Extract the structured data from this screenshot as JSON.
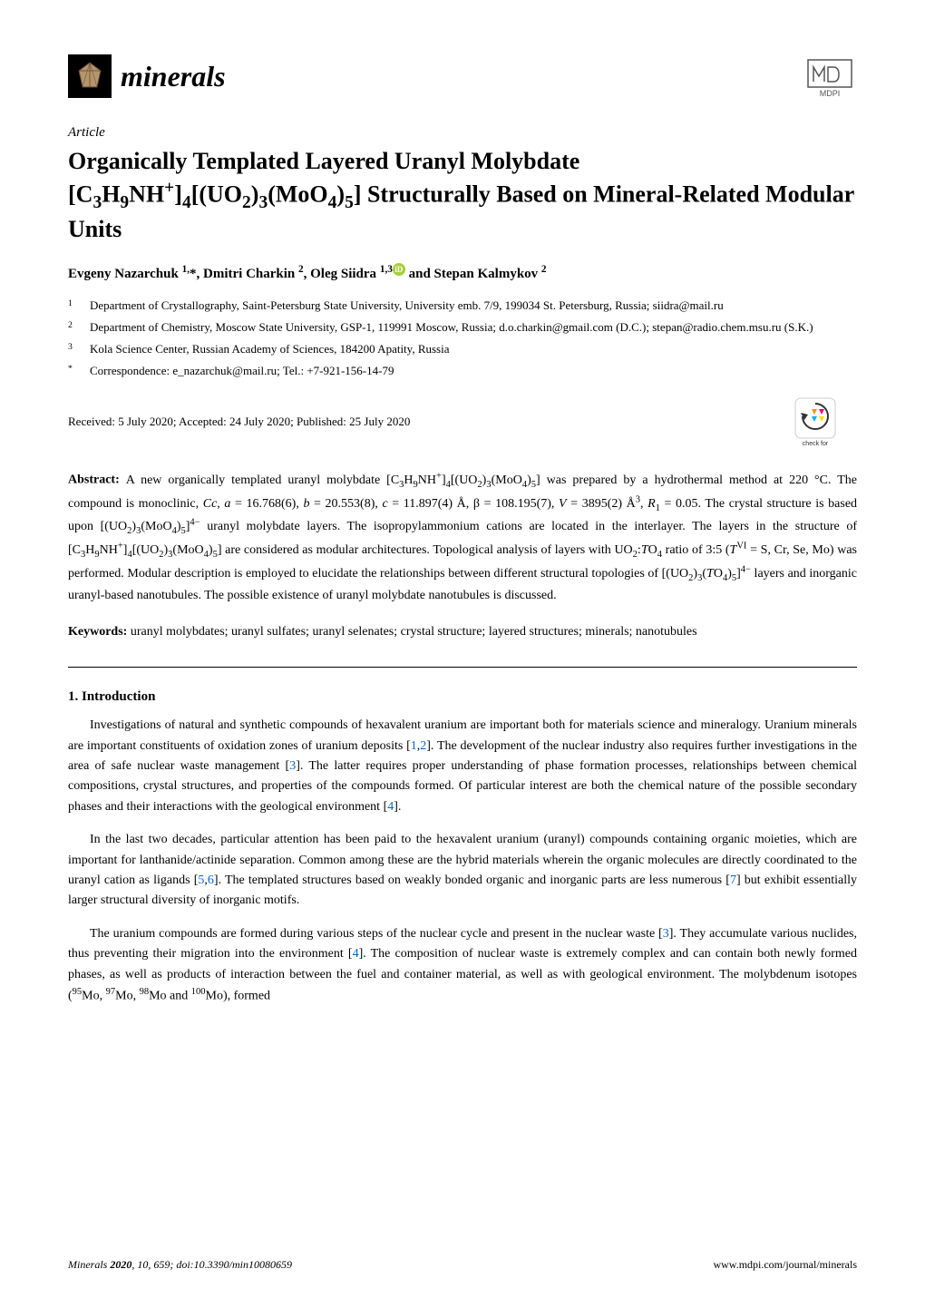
{
  "journal": {
    "name": "minerals",
    "publisher": "MDPI",
    "logo_bg": "#000000",
    "crystal_color": "#8B7355"
  },
  "article": {
    "type": "Article",
    "title_html": "Organically Templated Layered Uranyl Molybdate [C<sub>3</sub>H<sub>9</sub>NH<sup>+</sup>]<sub>4</sub>[(UO<sub>2</sub>)<sub>3</sub>(MoO<sub>4</sub>)<sub>5</sub>] Structurally Based on Mineral-Related Modular Units",
    "authors_html": "Evgeny Nazarchuk <sup>1,</sup>*, Dmitri Charkin <sup>2</sup>, Oleg Siidra <sup>1,3</sup><span class=\"orcid\" data-name=\"orcid-icon\" data-interactable=\"false\">iD</span> and Stepan Kalmykov <sup>2</sup>",
    "affiliations": [
      {
        "num": "1",
        "text": "Department of Crystallography, Saint-Petersburg State University, University emb. 7/9, 199034 St. Petersburg, Russia; siidra@mail.ru"
      },
      {
        "num": "2",
        "text": "Department of Chemistry, Moscow State University, GSP-1, 119991 Moscow, Russia; d.o.charkin@gmail.com (D.C.); stepan@radio.chem.msu.ru (S.K.)"
      },
      {
        "num": "3",
        "text": "Kola Science Center, Russian Academy of Sciences, 184200 Apatity, Russia"
      },
      {
        "num": "*",
        "text": "Correspondence: e_nazarchuk@mail.ru; Tel.: +7-921-156-14-79"
      }
    ],
    "dates": "Received: 5 July 2020; Accepted: 24 July 2020; Published: 25 July 2020",
    "abstract_html": "A new organically templated uranyl molybdate [C<sub>3</sub>H<sub>9</sub>NH<sup>+</sup>]<sub>4</sub>[(UO<sub>2</sub>)<sub>3</sub>(MoO<sub>4</sub>)<sub>5</sub>] was prepared by a hydrothermal method at 220 °C. The compound is monoclinic, <i>Cc</i>, <i>a</i> = 16.768(6), <i>b</i> = 20.553(8), <i>c</i> = 11.897(4) Å, β = 108.195(7), <i>V</i> = 3895(2) Å<sup>3</sup>, <i>R</i><sub>1</sub> = 0.05. The crystal structure is based upon [(UO<sub>2</sub>)<sub>3</sub>(MoO<sub>4</sub>)<sub>5</sub>]<sup>4−</sup> uranyl molybdate layers. The isopropylammonium cations are located in the interlayer. The layers in the structure of [C<sub>3</sub>H<sub>9</sub>NH<sup>+</sup>]<sub>4</sub>[(UO<sub>2</sub>)<sub>3</sub>(MoO<sub>4</sub>)<sub>5</sub>] are considered as modular architectures. Topological analysis of layers with UO<sub>2</sub>:<i>T</i>O<sub>4</sub> ratio of 3:5 (<i>T</i><sup>VI</sup> = S, Cr, Se, Mo) was performed. Modular description is employed to elucidate the relationships between different structural topologies of [(UO<sub>2</sub>)<sub>3</sub>(<i>T</i>O<sub>4</sub>)<sub>5</sub>]<sup>4−</sup> layers and inorganic uranyl-based nanotubules. The possible existence of uranyl molybdate nanotubules is discussed.",
    "keywords": "uranyl molybdates; uranyl sulfates; uranyl selenates; crystal structure; layered structures; minerals; nanotubules"
  },
  "section": {
    "heading": "1. Introduction",
    "paragraphs": [
      "Investigations of natural and synthetic compounds of hexavalent uranium are important both for materials science and mineralogy. Uranium minerals are important constituents of oxidation zones of uranium deposits [<a class=\"ref-link\" data-name=\"reference-link\" data-interactable=\"true\">1</a>,<a class=\"ref-link\" data-name=\"reference-link\" data-interactable=\"true\">2</a>]. The development of the nuclear industry also requires further investigations in the area of safe nuclear waste management [<a class=\"ref-link\" data-name=\"reference-link\" data-interactable=\"true\">3</a>]. The latter requires proper understanding of phase formation processes, relationships between chemical compositions, crystal structures, and properties of the compounds formed. Of particular interest are both the chemical nature of the possible secondary phases and their interactions with the geological environment [<a class=\"ref-link\" data-name=\"reference-link\" data-interactable=\"true\">4</a>].",
      "In the last two decades, particular attention has been paid to the hexavalent uranium (uranyl) compounds containing organic moieties, which are important for lanthanide/actinide separation. Common among these are the hybrid materials wherein the organic molecules are directly coordinated to the uranyl cation as ligands [<a class=\"ref-link\" data-name=\"reference-link\" data-interactable=\"true\">5</a>,<a class=\"ref-link\" data-name=\"reference-link\" data-interactable=\"true\">6</a>]. The templated structures based on weakly bonded organic and inorganic parts are less numerous [<a class=\"ref-link\" data-name=\"reference-link\" data-interactable=\"true\">7</a>] but exhibit essentially larger structural diversity of inorganic motifs.",
      "The uranium compounds are formed during various steps of the nuclear cycle and present in the nuclear waste [<a class=\"ref-link\" data-name=\"reference-link\" data-interactable=\"true\">3</a>]. They accumulate various nuclides, thus preventing their migration into the environment [<a class=\"ref-link\" data-name=\"reference-link\" data-interactable=\"true\">4</a>]. The composition of nuclear waste is extremely complex and can contain both newly formed phases, as well as products of interaction between the fuel and container material, as well as with geological environment. The molybdenum isotopes (<sup>95</sup>Mo, <sup>97</sup>Mo, <sup>98</sup>Mo and <sup>100</sup>Mo), formed"
    ]
  },
  "footer": {
    "left_html": "<i>Minerals</i> <b>2020</b>, <i>10</i>, 659; doi:10.3390/min10080659",
    "right": "www.mdpi.com/journal/minerals"
  },
  "colors": {
    "ref_link": "#0066cc",
    "check_updates_orange": "#f7931e",
    "check_updates_magenta": "#ec008c",
    "check_updates_cyan": "#00aeef",
    "check_updates_yellow": "#ffde00"
  }
}
